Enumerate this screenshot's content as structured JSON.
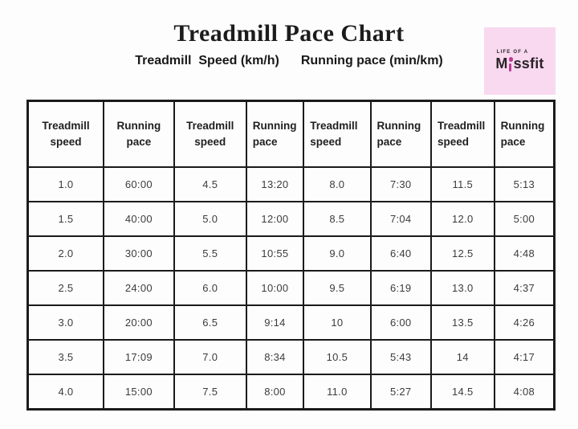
{
  "header": {
    "title": "Treadmill Pace Chart",
    "subtitle_speed": "Treadmill  Speed (km/h)",
    "subtitle_pace": "Running pace (min/km)"
  },
  "logo": {
    "tagline": "LIFE OF A",
    "brand_prefix": "M",
    "brand_suffix": "ssfit",
    "bg_color": "#f8d9f0",
    "accent_color": "#c03a94",
    "text_color": "#2a2328"
  },
  "chart_data": {
    "type": "table",
    "columns": [
      "Treadmill speed",
      "Running pace",
      "Treadmill speed",
      "Running pace",
      "Treadmill speed",
      "Running pace",
      "Treadmill speed",
      "Running pace"
    ],
    "column_widths_pct": [
      14.4,
      13.4,
      13.7,
      10.9,
      12.7,
      11.5,
      12.0,
      11.4
    ],
    "header_alignment": [
      "center",
      "center",
      "center",
      "left",
      "left",
      "left",
      "left",
      "left"
    ],
    "rows": [
      [
        "1.0",
        "60:00",
        "4.5",
        "13:20",
        "8.0",
        "7:30",
        "11.5",
        "5:13"
      ],
      [
        "1.5",
        "40:00",
        "5.0",
        "12:00",
        "8.5",
        "7:04",
        "12.0",
        "5:00"
      ],
      [
        "2.0",
        "30:00",
        "5.5",
        "10:55",
        "9.0",
        "6:40",
        "12.5",
        "4:48"
      ],
      [
        "2.5",
        "24:00",
        "6.0",
        "10:00",
        "9.5",
        "6:19",
        "13.0",
        "4:37"
      ],
      [
        "3.0",
        "20:00",
        "6.5",
        "9:14",
        "10",
        "6:00",
        "13.5",
        "4:26"
      ],
      [
        "3.5",
        "17:09",
        "7.0",
        "8:34",
        "10.5",
        "5:43",
        "14",
        "4:17"
      ],
      [
        "4.0",
        "15:00",
        "7.5",
        "8:00",
        "11.0",
        "5:27",
        "14.5",
        "4:08"
      ]
    ]
  }
}
